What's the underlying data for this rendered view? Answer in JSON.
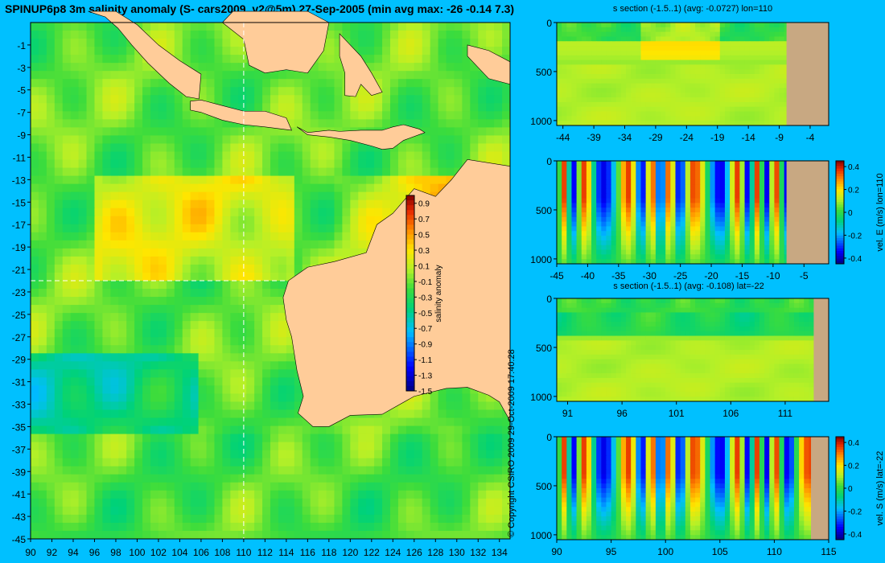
{
  "title": "SPINUP6p8 3m salinity anomaly (S- cars2009_v2@5m) 27-Sep-2005 (min avg max: -26 -0.14 7.3)",
  "copyright": "© Copyright CSIRO 2009 29-Oct-2009 17:40:28",
  "colors": {
    "background": "#00c0ff",
    "land": "#ffcc99",
    "land_section": "#c8a882",
    "dashed_line": "#ffffff"
  },
  "chart_data": [
    {
      "id": "map",
      "type": "heatmap",
      "xticks": [
        90,
        92,
        94,
        96,
        98,
        100,
        102,
        104,
        106,
        108,
        110,
        112,
        114,
        116,
        118,
        120,
        122,
        124,
        126,
        128,
        130,
        132,
        134
      ],
      "yticks": [
        -1,
        -3,
        -5,
        -7,
        -9,
        -11,
        -13,
        -15,
        -17,
        -19,
        -21,
        -23,
        -25,
        -27,
        -29,
        -31,
        -33,
        -35,
        -37,
        -39,
        -41,
        -43,
        -45
      ],
      "xlim": [
        90,
        135
      ],
      "ylim": [
        -45,
        1
      ],
      "section_lon": 110,
      "section_lat": -22,
      "colorbar": {
        "label": "salinity anomaly",
        "ticks": [
          "0.9",
          "0.7",
          "0.5",
          "0.3",
          "0.1",
          "-0.1",
          "-0.3",
          "-0.5",
          "-0.7",
          "-0.9",
          "-1.1",
          "-1.3",
          "-1.5"
        ],
        "range": [
          -1.5,
          1.0
        ]
      }
    },
    {
      "id": "section-s-lon",
      "type": "heatmap",
      "title": "s section (-1.5..1) (avg: -0.0727) lon=110",
      "xticks": [
        "-44",
        "-39",
        "-34",
        "-29",
        "-24",
        "-19",
        "-14",
        "-9",
        "-4"
      ],
      "yticks": [
        "0",
        "500",
        "1000"
      ],
      "xlim": [
        -45,
        -1
      ],
      "ylim": [
        0,
        1050
      ]
    },
    {
      "id": "section-u",
      "type": "heatmap",
      "xticks": [
        "-45",
        "-40",
        "-35",
        "-30",
        "-25",
        "-20",
        "-15",
        "-10",
        "-5"
      ],
      "yticks": [
        "0",
        "500",
        "1000"
      ],
      "xlim": [
        -45,
        -1
      ],
      "ylim": [
        0,
        1050
      ],
      "colorbar": {
        "label": "vel. E (m/s) lon=110",
        "ticks": [
          "0.4",
          "0.2",
          "0",
          "-0.2",
          "-0.4"
        ],
        "range": [
          -0.45,
          0.45
        ]
      }
    },
    {
      "id": "section-s-lat",
      "type": "heatmap",
      "title": "s section (-1.5..1) (avg: -0.108) lat=-22",
      "xticks": [
        "91",
        "96",
        "101",
        "106",
        "111"
      ],
      "yticks": [
        "0",
        "500",
        "1000"
      ],
      "xlim": [
        90,
        115
      ],
      "ylim": [
        0,
        1050
      ]
    },
    {
      "id": "section-v",
      "type": "heatmap",
      "xticks": [
        "90",
        "95",
        "100",
        "105",
        "110",
        "115"
      ],
      "yticks": [
        "0",
        "500",
        "1000"
      ],
      "xlim": [
        90,
        115
      ],
      "ylim": [
        0,
        1050
      ],
      "colorbar": {
        "label": "vel. S (m/s) lat=-22",
        "ticks": [
          "0.4",
          "0.2",
          "0",
          "-0.2",
          "-0.4"
        ],
        "range": [
          -0.45,
          0.45
        ]
      }
    }
  ]
}
